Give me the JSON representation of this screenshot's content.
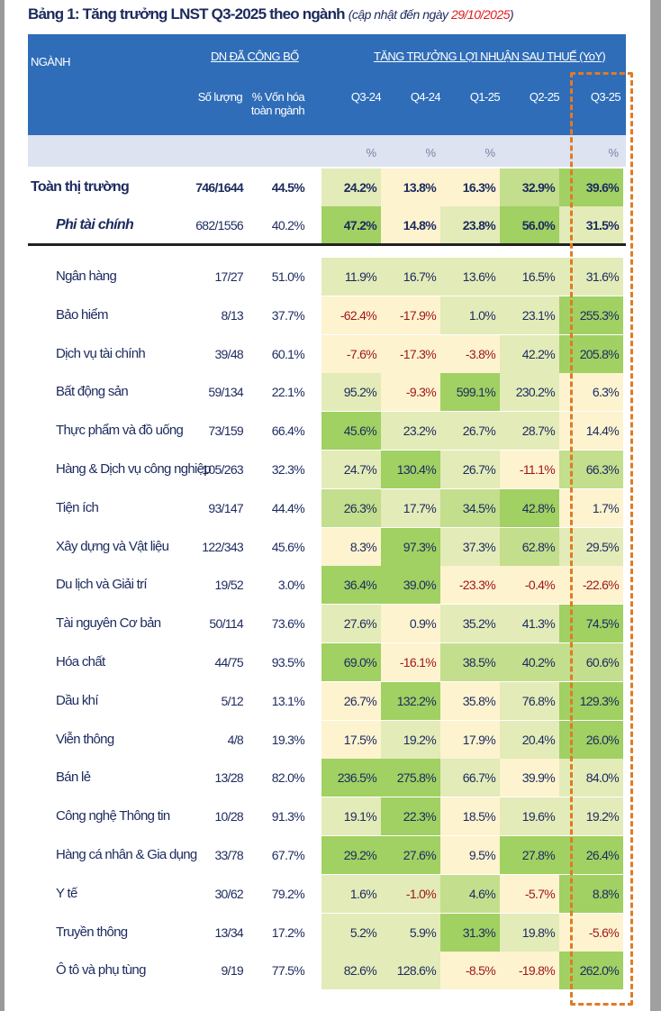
{
  "title": {
    "main": "Bảng 1: Tăng trưởng LNST Q3-2025 theo ngành",
    "sub_prefix": "(cập nhật đến ngày ",
    "date": "29/10/2025",
    "sub_suffix": ")"
  },
  "header": {
    "sector": "NGÀNH",
    "group1": "DN ĐÃ CÔNG BỐ",
    "group2": "TĂNG TRƯỞNG LỢI NHUẬN SAU THUẾ (YoY)",
    "count": "Số lượng",
    "cap_line1": "% Vốn hóa",
    "cap_line2": "toàn ngành",
    "periods": [
      "Q3-24",
      "Q4-24",
      "Q1-25",
      "Q2-25",
      "Q3-25"
    ],
    "units": [
      "%",
      "%",
      "%",
      "",
      "%"
    ]
  },
  "colors": {
    "header": "#2f6db8",
    "level0": "#fdf3cf",
    "level1": "#e3ebb8",
    "level2": "#c3de8c",
    "level3": "#a1d063",
    "negative": "#a01818",
    "highlight_box": "#e07b25"
  },
  "summary_rows": [
    {
      "name": "Toàn thị trường",
      "count": "746/1644",
      "cap": "44.5%",
      "values": [
        "24.2%",
        "13.8%",
        "16.3%",
        "32.9%",
        "39.6%"
      ],
      "levels": [
        1,
        0,
        0,
        2,
        3
      ]
    },
    {
      "name": "Phi tài chính",
      "count": "682/1556",
      "cap": "40.2%",
      "values": [
        "47.2%",
        "14.8%",
        "23.8%",
        "56.0%",
        "31.5%"
      ],
      "levels": [
        3,
        0,
        1,
        3,
        1
      ]
    }
  ],
  "rows": [
    {
      "name": "Ngân hàng",
      "count": "17/27",
      "cap": "51.0%",
      "values": [
        "11.9%",
        "16.7%",
        "13.6%",
        "16.5%",
        "31.6%"
      ],
      "levels": [
        1,
        1,
        1,
        1,
        1
      ]
    },
    {
      "name": "Bảo hiểm",
      "count": "8/13",
      "cap": "37.7%",
      "values": [
        "-62.4%",
        "-17.9%",
        "1.0%",
        "23.1%",
        "255.3%"
      ],
      "levels": [
        0,
        0,
        1,
        1,
        3
      ]
    },
    {
      "name": "Dịch vụ tài chính",
      "count": "39/48",
      "cap": "60.1%",
      "values": [
        "-7.6%",
        "-17.3%",
        "-3.8%",
        "42.2%",
        "205.8%"
      ],
      "levels": [
        0,
        0,
        0,
        1,
        3
      ]
    },
    {
      "name": "Bất động sản",
      "count": "59/134",
      "cap": "22.1%",
      "values": [
        "95.2%",
        "-9.3%",
        "599.1%",
        "230.2%",
        "6.3%"
      ],
      "levels": [
        1,
        0,
        3,
        1,
        0
      ]
    },
    {
      "name": "Thực phẩm và đồ uống",
      "count": "73/159",
      "cap": "66.4%",
      "values": [
        "45.6%",
        "23.2%",
        "26.7%",
        "28.7%",
        "14.4%"
      ],
      "levels": [
        3,
        1,
        1,
        1,
        0
      ]
    },
    {
      "name": "Hàng & Dịch vụ công nghiệp",
      "count": "105/263",
      "cap": "32.3%",
      "values": [
        "24.7%",
        "130.4%",
        "26.7%",
        "-11.1%",
        "66.3%"
      ],
      "levels": [
        1,
        3,
        1,
        0,
        2
      ]
    },
    {
      "name": "Tiện ích",
      "count": "93/147",
      "cap": "44.4%",
      "values": [
        "26.3%",
        "17.7%",
        "34.5%",
        "42.8%",
        "1.7%"
      ],
      "levels": [
        2,
        1,
        2,
        3,
        0
      ]
    },
    {
      "name": "Xây dựng và Vật liệu",
      "count": "122/343",
      "cap": "45.6%",
      "values": [
        "8.3%",
        "97.3%",
        "37.3%",
        "62.8%",
        "29.5%"
      ],
      "levels": [
        0,
        3,
        1,
        2,
        1
      ]
    },
    {
      "name": "Du lịch và Giải trí",
      "count": "19/52",
      "cap": "3.0%",
      "values": [
        "36.4%",
        "39.0%",
        "-23.3%",
        "-0.4%",
        "-22.6%"
      ],
      "levels": [
        3,
        3,
        0,
        0,
        0
      ]
    },
    {
      "name": "Tài nguyên Cơ bản",
      "count": "50/114",
      "cap": "73.6%",
      "values": [
        "27.6%",
        "0.9%",
        "35.2%",
        "41.3%",
        "74.5%"
      ],
      "levels": [
        1,
        0,
        1,
        1,
        3
      ]
    },
    {
      "name": "Hóa chất",
      "count": "44/75",
      "cap": "93.5%",
      "values": [
        "69.0%",
        "-16.1%",
        "38.5%",
        "40.2%",
        "60.6%"
      ],
      "levels": [
        3,
        0,
        2,
        2,
        2
      ]
    },
    {
      "name": "Dầu khí",
      "count": "5/12",
      "cap": "13.1%",
      "values": [
        "26.7%",
        "132.2%",
        "35.8%",
        "76.8%",
        "129.3%"
      ],
      "levels": [
        0,
        3,
        0,
        1,
        3
      ]
    },
    {
      "name": "Viễn thông",
      "count": "4/8",
      "cap": "19.3%",
      "values": [
        "17.5%",
        "19.2%",
        "17.9%",
        "20.4%",
        "26.0%"
      ],
      "levels": [
        0,
        1,
        0,
        1,
        3
      ]
    },
    {
      "name": "Bán lẻ",
      "count": "13/28",
      "cap": "82.0%",
      "values": [
        "236.5%",
        "275.8%",
        "66.7%",
        "39.9%",
        "84.0%"
      ],
      "levels": [
        3,
        3,
        1,
        0,
        1
      ]
    },
    {
      "name": "Công nghệ Thông tin",
      "count": "10/28",
      "cap": "91.3%",
      "values": [
        "19.1%",
        "22.3%",
        "18.5%",
        "19.6%",
        "19.2%"
      ],
      "levels": [
        1,
        3,
        0,
        1,
        1
      ]
    },
    {
      "name": "Hàng cá nhân & Gia dụng",
      "count": "33/78",
      "cap": "67.7%",
      "values": [
        "29.2%",
        "27.6%",
        "9.5%",
        "27.8%",
        "26.4%"
      ],
      "levels": [
        3,
        3,
        0,
        3,
        3
      ]
    },
    {
      "name": "Y tế",
      "count": "30/62",
      "cap": "79.2%",
      "values": [
        "1.6%",
        "-1.0%",
        "4.6%",
        "-5.7%",
        "8.8%"
      ],
      "levels": [
        1,
        1,
        2,
        0,
        3
      ]
    },
    {
      "name": "Truyền thông",
      "count": "13/34",
      "cap": "17.2%",
      "values": [
        "5.2%",
        "5.9%",
        "31.3%",
        "19.8%",
        "-5.6%"
      ],
      "levels": [
        1,
        1,
        3,
        1,
        0
      ]
    },
    {
      "name": "Ô tô và phụ tùng",
      "count": "9/19",
      "cap": "77.5%",
      "values": [
        "82.6%",
        "128.6%",
        "-8.5%",
        "-19.8%",
        "262.0%"
      ],
      "levels": [
        1,
        1,
        0,
        0,
        3
      ]
    }
  ]
}
